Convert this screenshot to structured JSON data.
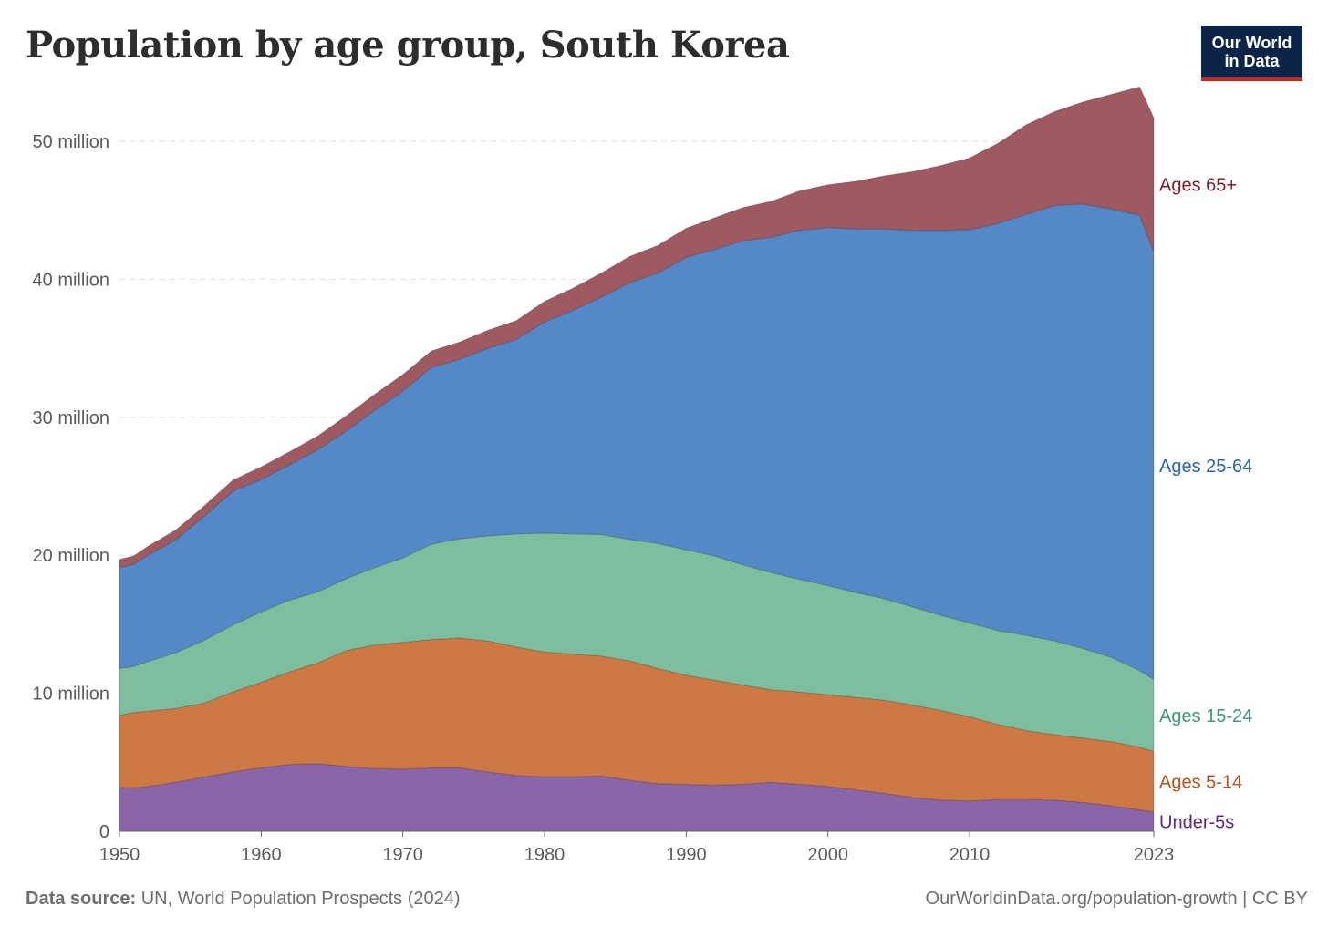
{
  "header": {
    "title": "Population by age group, South Korea",
    "logo_line1": "Our World",
    "logo_line2": "in Data"
  },
  "footer": {
    "source_label": "Data source:",
    "source_text": "UN, World Population Prospects (2024)",
    "url_text": "OurWorldinData.org/population-growth",
    "license": "| CC BY"
  },
  "chart_data": {
    "type": "area",
    "stacked": true,
    "x_ticks": [
      "1950",
      "1960",
      "1970",
      "1980",
      "1990",
      "2000",
      "2010",
      "2023"
    ],
    "y_ticks": [
      "0",
      "10 million",
      "20 million",
      "30 million",
      "40 million",
      "50 million"
    ],
    "ylim": [
      0,
      52000000
    ],
    "xlim": [
      1950,
      2023
    ],
    "grid": true,
    "x": [
      1950,
      1951,
      1952,
      1954,
      1956,
      1958,
      1960,
      1962,
      1964,
      1966,
      1968,
      1970,
      1972,
      1974,
      1976,
      1978,
      1980,
      1982,
      1984,
      1986,
      1988,
      1990,
      1992,
      1994,
      1996,
      1998,
      2000,
      2002,
      2004,
      2006,
      2008,
      2010,
      2012,
      2014,
      2016,
      2018,
      2020,
      2022,
      2023
    ],
    "series": [
      {
        "name": "Under-5s",
        "color": "#8a65a8",
        "label_color": "#5c2a82",
        "values": [
          3200000,
          3150000,
          3250000,
          3550000,
          3950000,
          4300000,
          4600000,
          4850000,
          4900000,
          4700000,
          4550000,
          4500000,
          4600000,
          4600000,
          4300000,
          4050000,
          3950000,
          3950000,
          4000000,
          3700000,
          3450000,
          3400000,
          3350000,
          3400000,
          3550000,
          3400000,
          3250000,
          3000000,
          2750000,
          2450000,
          2250000,
          2200000,
          2300000,
          2300000,
          2250000,
          2100000,
          1850000,
          1550000,
          1400000
        ]
      },
      {
        "name": "Ages 5-14",
        "color": "#cc7944",
        "label_color": "#b5541f",
        "values": [
          5200000,
          5450000,
          5450000,
          5350000,
          5350000,
          5800000,
          6200000,
          6700000,
          7300000,
          8400000,
          8950000,
          9200000,
          9300000,
          9400000,
          9500000,
          9300000,
          9050000,
          8900000,
          8700000,
          8650000,
          8350000,
          7900000,
          7600000,
          7200000,
          6700000,
          6700000,
          6650000,
          6700000,
          6750000,
          6700000,
          6500000,
          6100000,
          5450000,
          5000000,
          4750000,
          4650000,
          4650000,
          4550000,
          4400000
        ]
      },
      {
        "name": "Ages 15-24",
        "color": "#7dbe9f",
        "label_color": "#3a9a73",
        "values": [
          3400000,
          3350000,
          3600000,
          4050000,
          4550000,
          4850000,
          5100000,
          5200000,
          5150000,
          5200000,
          5600000,
          6100000,
          6900000,
          7200000,
          7600000,
          8200000,
          8600000,
          8700000,
          8800000,
          8800000,
          9050000,
          9100000,
          9000000,
          8700000,
          8500000,
          8150000,
          7900000,
          7600000,
          7350000,
          7100000,
          6900000,
          6800000,
          6800000,
          6900000,
          6800000,
          6500000,
          6100000,
          5550000,
          5200000
        ]
      },
      {
        "name": "Ages 25-64",
        "color": "#5488c7",
        "label_color": "#2e63a8",
        "values": [
          7300000,
          7400000,
          7700000,
          8200000,
          9000000,
          9700000,
          9600000,
          9800000,
          10300000,
          10700000,
          11400000,
          12100000,
          12800000,
          13000000,
          13600000,
          14100000,
          15300000,
          16200000,
          17200000,
          18600000,
          19600000,
          21200000,
          22200000,
          23500000,
          24300000,
          25300000,
          25950000,
          26350000,
          26800000,
          27300000,
          27900000,
          28500000,
          29500000,
          30500000,
          31550000,
          32200000,
          32500000,
          33000000,
          31000000
        ]
      },
      {
        "name": "Ages 65+",
        "color": "#9e5a60",
        "label_color": "#7b1f2b",
        "values": [
          600000,
          600000,
          650000,
          700000,
          750000,
          800000,
          900000,
          950000,
          1000000,
          1100000,
          1150000,
          1200000,
          1200000,
          1250000,
          1300000,
          1350000,
          1500000,
          1600000,
          1750000,
          1900000,
          2000000,
          2100000,
          2300000,
          2400000,
          2600000,
          2850000,
          3100000,
          3450000,
          3850000,
          4250000,
          4700000,
          5200000,
          5800000,
          6500000,
          6800000,
          7400000,
          8300000,
          9300000,
          9700000
        ]
      }
    ]
  }
}
